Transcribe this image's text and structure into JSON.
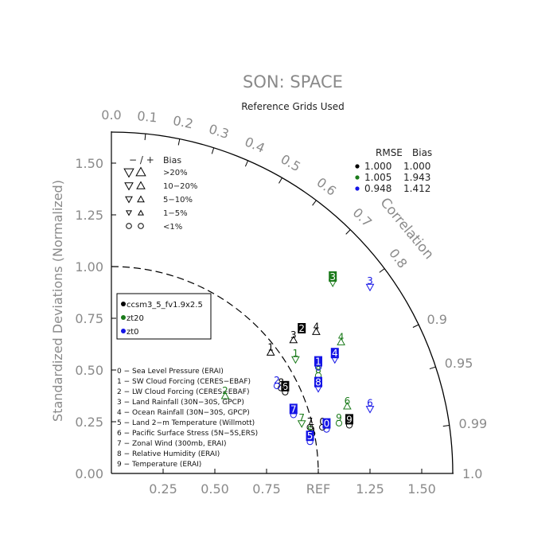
{
  "chart_data": {
    "type": "taylor",
    "title": "SON: SPACE",
    "subtitle": "Reference Grids Used",
    "ylabel": "Standardized Deviations (Normalized)",
    "x_tick_labels": [
      "0.25",
      "0.50",
      "0.75",
      "REF",
      "1.25",
      "1.50"
    ],
    "y_tick_labels": [
      "0.00",
      "0.25",
      "0.50",
      "0.75",
      "1.00",
      "1.25",
      "1.50"
    ],
    "std_range": [
      0,
      1.65
    ],
    "correlation_label": "Correlation",
    "correlation_ticks": [
      "0.0",
      "0.1",
      "0.2",
      "0.3",
      "0.4",
      "0.5",
      "0.6",
      "0.7",
      "0.8",
      "0.9",
      "0.95",
      "0.99",
      "1.0"
    ],
    "bias_legend": {
      "header": [
        "− / +",
        "Bias"
      ],
      "rows": [
        ">20%",
        "10−20%",
        "5−10%",
        "1−5%",
        "<1%"
      ]
    },
    "rmse_table": {
      "header": [
        "RMSE",
        "Bias"
      ],
      "rows": [
        {
          "rmse": "1.000",
          "bias": "1.000",
          "color": "#000000"
        },
        {
          "rmse": "1.005",
          "bias": "1.943",
          "color": "#1a7a1a"
        },
        {
          "rmse": "0.948",
          "bias": "1.412",
          "color": "#1414e6"
        }
      ]
    },
    "cases": [
      {
        "name": "ccsm3_5_fv1.9x2.5",
        "color": "#000000"
      },
      {
        "name": "zt20",
        "color": "#1a7a1a"
      },
      {
        "name": "zt0",
        "color": "#1414e6"
      }
    ],
    "variables": [
      "0 − Sea Level Pressure (ERAI)",
      "1 − SW Cloud Forcing (CERES−EBAF)",
      "2 − LW Cloud Forcing (CERES−EBAF)",
      "3 − Land Rainfall (30N−30S, GPCP)",
      "4 − Ocean Rainfall (30N−30S, GPCP)",
      "5 − Land 2−m Temperature (Willmott)",
      "6 − Pacific Surface Stress (5N−5S,ERS)",
      "7 − Zonal Wind (300mb, ERAI)",
      "8 − Relative Humidity (ERAI)",
      "9 − Temperature (ERAI)"
    ],
    "points": [
      {
        "case": 0,
        "var": "0",
        "x": 1.02,
        "y": 0.25,
        "box": false,
        "marker": "circle"
      },
      {
        "case": 0,
        "var": "1",
        "x": 0.77,
        "y": 0.61,
        "box": false,
        "marker": "tri-up"
      },
      {
        "case": 0,
        "var": "2",
        "x": 0.92,
        "y": 0.7,
        "box": true,
        "marker": "none"
      },
      {
        "case": 0,
        "var": "3",
        "x": 0.88,
        "y": 0.67,
        "box": false,
        "marker": "tri-up"
      },
      {
        "case": 0,
        "var": "4",
        "x": 0.99,
        "y": 0.71,
        "box": false,
        "marker": "tri-up"
      },
      {
        "case": 0,
        "var": "5",
        "x": 0.97,
        "y": 0.22,
        "box": false,
        "marker": "circle"
      },
      {
        "case": 0,
        "var": "6",
        "x": 0.84,
        "y": 0.42,
        "box": true,
        "marker": "circle"
      },
      {
        "case": 0,
        "var": "7",
        "x": 0.96,
        "y": 0.25,
        "box": false,
        "marker": "circle"
      },
      {
        "case": 0,
        "var": "8",
        "x": 0.82,
        "y": 0.44,
        "box": false,
        "marker": "circle"
      },
      {
        "case": 0,
        "var": "9",
        "x": 1.15,
        "y": 0.26,
        "box": true,
        "marker": "circle"
      },
      {
        "case": 1,
        "var": "1",
        "x": 0.89,
        "y": 0.58,
        "box": false,
        "marker": "tri-down"
      },
      {
        "case": 1,
        "var": "2",
        "x": 0.55,
        "y": 0.4,
        "box": false,
        "marker": "tri-up"
      },
      {
        "case": 1,
        "var": "3",
        "x": 1.07,
        "y": 0.95,
        "box": true,
        "marker": "tri-down"
      },
      {
        "case": 1,
        "var": "4",
        "x": 1.11,
        "y": 0.66,
        "box": false,
        "marker": "tri-up"
      },
      {
        "case": 1,
        "var": "5",
        "x": 0.96,
        "y": 0.21,
        "box": false,
        "marker": "circle"
      },
      {
        "case": 1,
        "var": "6",
        "x": 1.14,
        "y": 0.35,
        "box": false,
        "marker": "tri-up"
      },
      {
        "case": 1,
        "var": "7",
        "x": 0.92,
        "y": 0.27,
        "box": false,
        "marker": "tri-down"
      },
      {
        "case": 1,
        "var": "8",
        "x": 1.0,
        "y": 0.5,
        "box": false,
        "marker": "circle"
      },
      {
        "case": 1,
        "var": "9",
        "x": 1.1,
        "y": 0.27,
        "box": false,
        "marker": "circle"
      },
      {
        "case": 2,
        "var": "0",
        "x": 1.04,
        "y": 0.24,
        "box": true,
        "marker": "circle"
      },
      {
        "case": 2,
        "var": "1",
        "x": 1.0,
        "y": 0.54,
        "box": true,
        "marker": "circle"
      },
      {
        "case": 2,
        "var": "3",
        "x": 1.25,
        "y": 0.93,
        "box": false,
        "marker": "tri-down"
      },
      {
        "case": 2,
        "var": "4",
        "x": 1.08,
        "y": 0.58,
        "box": true,
        "marker": "tri-down"
      },
      {
        "case": 2,
        "var": "5",
        "x": 0.96,
        "y": 0.18,
        "box": true,
        "marker": "circle"
      },
      {
        "case": 2,
        "var": "6",
        "x": 1.25,
        "y": 0.34,
        "box": false,
        "marker": "tri-down"
      },
      {
        "case": 2,
        "var": "7",
        "x": 0.88,
        "y": 0.31,
        "box": true,
        "marker": "circle"
      },
      {
        "case": 2,
        "var": "8",
        "x": 1.0,
        "y": 0.44,
        "box": true,
        "marker": "tri-down"
      },
      {
        "case": 2,
        "var": "2",
        "x": 0.8,
        "y": 0.45,
        "box": false,
        "marker": "circle"
      }
    ]
  }
}
